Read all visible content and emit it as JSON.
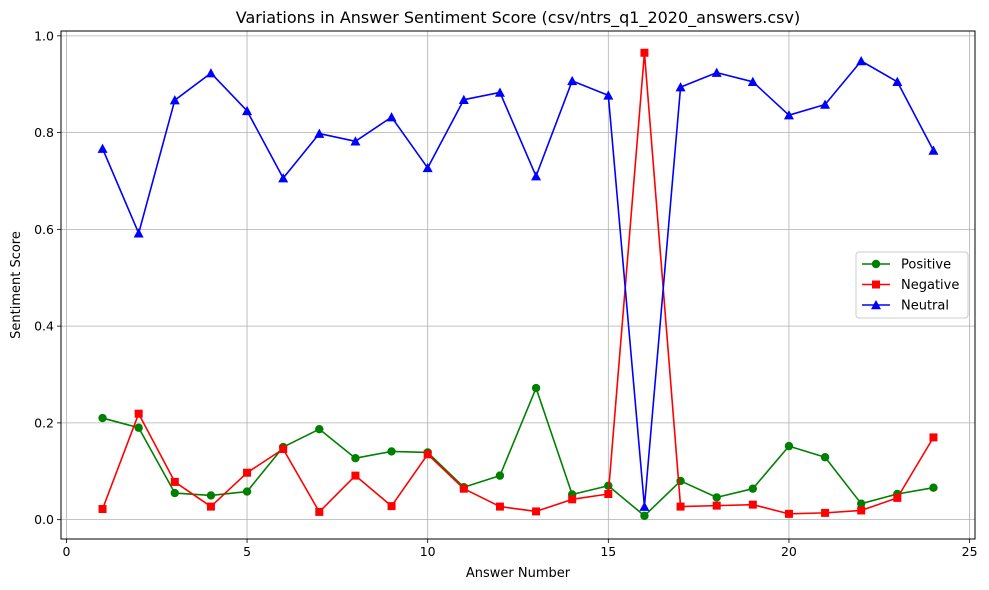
{
  "chart_data": {
    "type": "line",
    "title": "Variations in Answer Sentiment Score (csv/ntrs_q1_2020_answers.csv)",
    "xlabel": "Answer Number",
    "ylabel": "Sentiment Score",
    "xlim": [
      -0.15,
      25.15
    ],
    "ylim": [
      -0.04,
      1.01
    ],
    "xticks": [
      0,
      5,
      10,
      15,
      20,
      25
    ],
    "xtick_labels": [
      "0",
      "5",
      "10",
      "15",
      "20",
      "25"
    ],
    "yticks": [
      0.0,
      0.2,
      0.4,
      0.6,
      0.8,
      1.0
    ],
    "ytick_labels": [
      "0.0",
      "0.2",
      "0.4",
      "0.6",
      "0.8",
      "1.0"
    ],
    "grid": true,
    "legend_position": "center-right",
    "x": [
      1,
      2,
      3,
      4,
      5,
      6,
      7,
      8,
      9,
      10,
      11,
      12,
      13,
      14,
      15,
      16,
      17,
      18,
      19,
      20,
      21,
      22,
      23,
      24
    ],
    "series": [
      {
        "name": "Positive",
        "color": "#008000",
        "marker": "circle",
        "values": [
          0.21,
          0.19,
          0.055,
          0.05,
          0.058,
          0.15,
          0.187,
          0.127,
          0.141,
          0.139,
          0.067,
          0.091,
          0.272,
          0.052,
          0.07,
          0.008,
          0.08,
          0.046,
          0.064,
          0.152,
          0.129,
          0.033,
          0.053,
          0.066
        ]
      },
      {
        "name": "Negative",
        "color": "#ff0000",
        "marker": "square",
        "values": [
          0.022,
          0.219,
          0.078,
          0.027,
          0.097,
          0.146,
          0.016,
          0.091,
          0.028,
          0.135,
          0.064,
          0.027,
          0.017,
          0.042,
          0.053,
          0.965,
          0.027,
          0.029,
          0.031,
          0.012,
          0.014,
          0.019,
          0.045,
          0.17
        ]
      },
      {
        "name": "Neutral",
        "color": "#0000ff",
        "marker": "triangle",
        "values": [
          0.767,
          0.592,
          0.867,
          0.923,
          0.845,
          0.706,
          0.798,
          0.782,
          0.832,
          0.727,
          0.868,
          0.883,
          0.71,
          0.907,
          0.877,
          0.027,
          0.894,
          0.924,
          0.905,
          0.836,
          0.858,
          0.948,
          0.905,
          0.763
        ]
      }
    ]
  }
}
